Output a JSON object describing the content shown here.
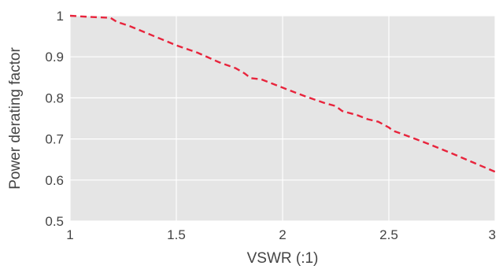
{
  "chart_data": {
    "type": "line",
    "title": "",
    "xlabel": "VSWR (:1)",
    "ylabel": "Power derating factor",
    "xlim": [
      1,
      3
    ],
    "ylim": [
      0.5,
      1
    ],
    "x_ticks": [
      1,
      1.5,
      2,
      2.5,
      3
    ],
    "x_tick_labels": [
      "1",
      "1.5",
      "2",
      "2.5",
      "3"
    ],
    "y_ticks": [
      0.5,
      0.6,
      0.7,
      0.8,
      0.9,
      1
    ],
    "y_tick_labels": [
      "0.5",
      "0.6",
      "0.7",
      "0.8",
      "0.9",
      "1"
    ],
    "grid": true,
    "background_color": "#e5e5e5",
    "series": [
      {
        "color": "#e8243c",
        "line_style": "dashed",
        "x": [
          1.0,
          1.1,
          1.19,
          1.22,
          1.28,
          1.35,
          1.42,
          1.5,
          1.6,
          1.7,
          1.78,
          1.82,
          1.85,
          1.9,
          1.95,
          2.0,
          2.1,
          2.2,
          2.25,
          2.28,
          2.35,
          2.4,
          2.45,
          2.5,
          2.52,
          2.6,
          2.7,
          2.8,
          2.9,
          3.0
        ],
        "y": [
          1.0,
          0.997,
          0.995,
          0.985,
          0.975,
          0.96,
          0.945,
          0.928,
          0.91,
          0.887,
          0.872,
          0.86,
          0.848,
          0.845,
          0.835,
          0.825,
          0.805,
          0.787,
          0.78,
          0.768,
          0.758,
          0.748,
          0.742,
          0.728,
          0.72,
          0.705,
          0.685,
          0.664,
          0.642,
          0.62
        ]
      }
    ]
  }
}
